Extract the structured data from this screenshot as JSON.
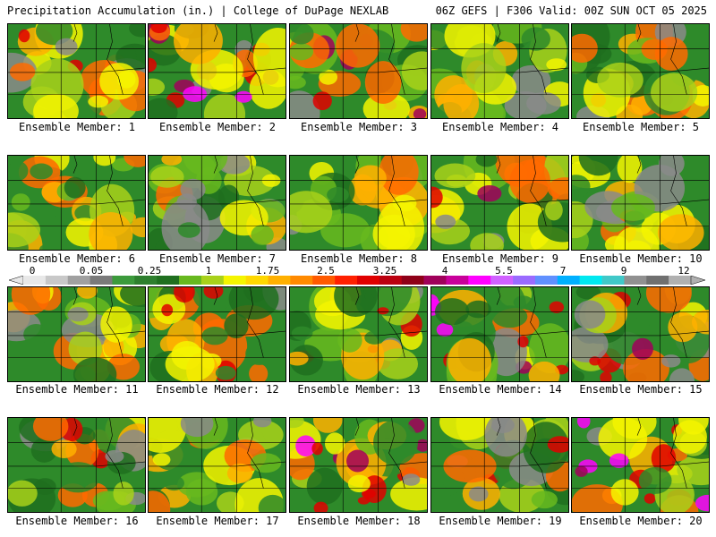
{
  "header": {
    "left": "Precipitation Accumulation (in.) | College of DuPage NEXLAB",
    "right": "06Z GEFS | F306 Valid: 00Z SUN OCT 05 2025"
  },
  "members": [
    {
      "label": "Ensemble Member: 1",
      "seed": 1,
      "intensity": 0.55
    },
    {
      "label": "Ensemble Member: 2",
      "seed": 2,
      "intensity": 0.85
    },
    {
      "label": "Ensemble Member: 3",
      "seed": 3,
      "intensity": 0.75
    },
    {
      "label": "Ensemble Member: 4",
      "seed": 4,
      "intensity": 0.45
    },
    {
      "label": "Ensemble Member: 5",
      "seed": 5,
      "intensity": 0.6
    },
    {
      "label": "Ensemble Member: 6",
      "seed": 6,
      "intensity": 0.55
    },
    {
      "label": "Ensemble Member: 7",
      "seed": 7,
      "intensity": 0.45
    },
    {
      "label": "Ensemble Member: 8",
      "seed": 8,
      "intensity": 0.45
    },
    {
      "label": "Ensemble Member: 9",
      "seed": 9,
      "intensity": 0.7
    },
    {
      "label": "Ensemble Member: 10",
      "seed": 10,
      "intensity": 0.55
    },
    {
      "label": "Ensemble Member: 11",
      "seed": 11,
      "intensity": 0.5
    },
    {
      "label": "Ensemble Member: 12",
      "seed": 12,
      "intensity": 0.6
    },
    {
      "label": "Ensemble Member: 13",
      "seed": 13,
      "intensity": 0.65
    },
    {
      "label": "Ensemble Member: 14",
      "seed": 14,
      "intensity": 0.8
    },
    {
      "label": "Ensemble Member: 15",
      "seed": 15,
      "intensity": 0.65
    },
    {
      "label": "Ensemble Member: 16",
      "seed": 16,
      "intensity": 0.6
    },
    {
      "label": "Ensemble Member: 17",
      "seed": 17,
      "intensity": 0.45
    },
    {
      "label": "Ensemble Member: 18",
      "seed": 18,
      "intensity": 0.8
    },
    {
      "label": "Ensemble Member: 19",
      "seed": 19,
      "intensity": 0.55
    },
    {
      "label": "Ensemble Member: 20",
      "seed": 20,
      "intensity": 0.85
    }
  ],
  "colorbar": {
    "labels": [
      "0",
      "0.05",
      "0.25",
      "1",
      "1.75",
      "2.5",
      "3.25",
      "4",
      "5.5",
      "7",
      "9",
      "12"
    ],
    "colors": [
      "#e8e8e8",
      "#c8c8c8",
      "#a0a0a0",
      "#7a7a7a",
      "#3c9a3c",
      "#2e7f2e",
      "#1f6f1f",
      "#67b81f",
      "#a8d11a",
      "#f5f500",
      "#ffd800",
      "#ffb000",
      "#ff8a00",
      "#ff5a00",
      "#ff2000",
      "#e00000",
      "#bb0010",
      "#8f0018",
      "#a0005a",
      "#c8009a",
      "#ff00ff",
      "#d060ff",
      "#9a6bff",
      "#6090ff",
      "#00b0ff",
      "#00e8f0",
      "#40c8c8",
      "#909090",
      "#707070",
      "#b0b0b0"
    ]
  }
}
